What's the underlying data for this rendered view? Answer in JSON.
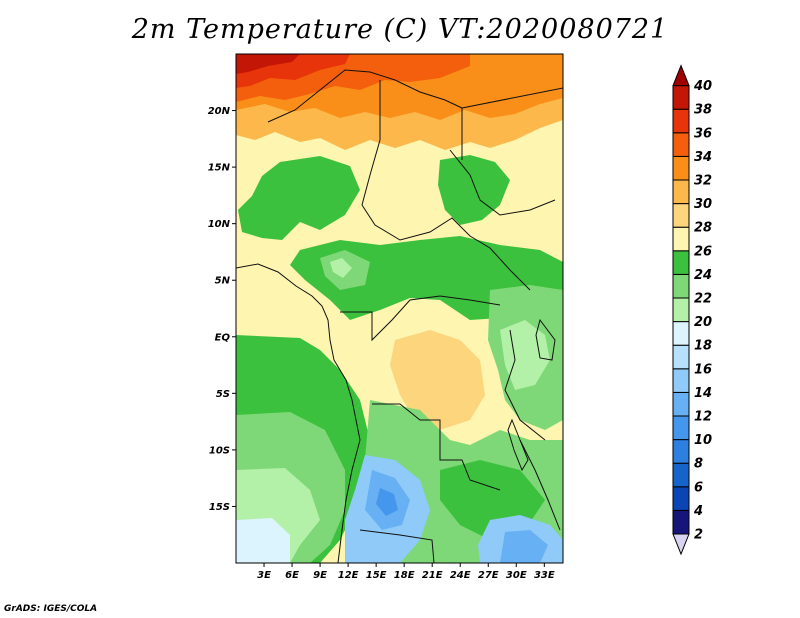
{
  "title": "2m Temperature (C) VT:2020080721",
  "credit": "GrADS: IGES/COLA",
  "map": {
    "lon_range": [
      0,
      35
    ],
    "lat_range": [
      -20,
      25
    ],
    "lat_ticks": [
      {
        "value": 20,
        "label": "20N"
      },
      {
        "value": 15,
        "label": "15N"
      },
      {
        "value": 10,
        "label": "10N"
      },
      {
        "value": 5,
        "label": "5N"
      },
      {
        "value": 0,
        "label": "EQ"
      },
      {
        "value": -5,
        "label": "5S"
      },
      {
        "value": -10,
        "label": "10S"
      },
      {
        "value": -15,
        "label": "15S"
      }
    ],
    "lon_ticks": [
      {
        "value": 3,
        "label": "3E"
      },
      {
        "value": 6,
        "label": "6E"
      },
      {
        "value": 9,
        "label": "9E"
      },
      {
        "value": 12,
        "label": "12E"
      },
      {
        "value": 15,
        "label": "15E"
      },
      {
        "value": 18,
        "label": "18E"
      },
      {
        "value": 21,
        "label": "21E"
      },
      {
        "value": 24,
        "label": "24E"
      },
      {
        "value": 27,
        "label": "27E"
      },
      {
        "value": 30,
        "label": "30E"
      },
      {
        "value": 33,
        "label": "33E"
      }
    ]
  },
  "colorbar": {
    "levels": [
      {
        "label": "2",
        "color": "#16167a"
      },
      {
        "label": "4",
        "color": "#0b44b5"
      },
      {
        "label": "6",
        "color": "#1763cc"
      },
      {
        "label": "8",
        "color": "#2d7fe0"
      },
      {
        "label": "10",
        "color": "#4597ee"
      },
      {
        "label": "12",
        "color": "#67b0f4"
      },
      {
        "label": "14",
        "color": "#8fcaf9"
      },
      {
        "label": "16",
        "color": "#b6e0fc"
      },
      {
        "label": "18",
        "color": "#dcf4fd"
      },
      {
        "label": "20",
        "color": "#b3f0a8"
      },
      {
        "label": "22",
        "color": "#7fd877"
      },
      {
        "label": "24",
        "color": "#3cc13e"
      },
      {
        "label": "26",
        "color": "#fdf5b0"
      },
      {
        "label": "28",
        "color": "#fcd57d"
      },
      {
        "label": "30",
        "color": "#fcb84a"
      },
      {
        "label": "32",
        "color": "#f98f18"
      },
      {
        "label": "34",
        "color": "#f45f0d"
      },
      {
        "label": "36",
        "color": "#e8340a"
      },
      {
        "label": "38",
        "color": "#c41606"
      },
      {
        "label": "40",
        "color": "#a00000"
      }
    ],
    "under_color": "#d9d4f2",
    "over_color": "#a00000"
  }
}
